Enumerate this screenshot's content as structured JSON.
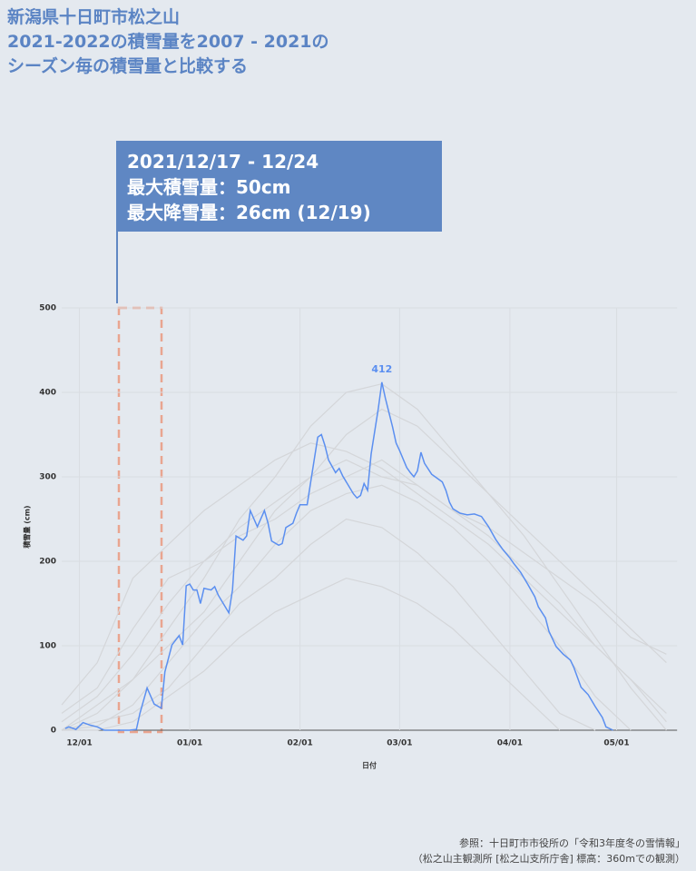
{
  "chart_data": {
    "type": "line",
    "title": [
      "新潟県十日町市松之山",
      "2021-2022の積雪量を2007 - 2021の",
      "シーズン毎の積雪量と比較する"
    ],
    "annotation": [
      "2021/12/17 - 12/24",
      "最大積雪量：50cm",
      "最大降雪量：26cm (12/19)"
    ],
    "source": [
      "参照：十日町市市役所の「令和3年度冬の雪情報」",
      "（松之山主観測所 [松之山支所庁舎] 標高：360mでの観測）"
    ],
    "y_label": "積雪量 (cm)",
    "x_label": "日付",
    "xlim": [
      "11/26",
      "05/18"
    ],
    "xticks": [
      "12/01",
      "01/01",
      "02/01",
      "03/01",
      "04/01",
      "05/01"
    ],
    "ylim": [
      0,
      500
    ],
    "yticks": [
      0,
      100,
      200,
      300,
      400,
      500
    ],
    "grid": true,
    "x": [
      "11/26",
      "12/06",
      "12/16",
      "12/26",
      "01/05",
      "01/15",
      "01/25",
      "02/04",
      "02/14",
      "02/24",
      "03/06",
      "03/16",
      "03/26",
      "04/05",
      "04/15",
      "04/25",
      "05/05",
      "05/15"
    ],
    "series": [
      {
        "color": "#d4d6d9",
        "values": [
          0,
          20,
          60,
          120,
          180,
          250,
          300,
          360,
          400,
          410,
          380,
          330,
          280,
          230,
          170,
          110,
          50,
          0
        ]
      },
      {
        "color": "#d4d6d9",
        "values": [
          10,
          40,
          90,
          150,
          200,
          240,
          270,
          300,
          320,
          300,
          290,
          260,
          230,
          190,
          150,
          100,
          60,
          20
        ]
      },
      {
        "color": "#d4d6d9",
        "values": [
          0,
          5,
          30,
          80,
          130,
          170,
          220,
          260,
          280,
          290,
          270,
          240,
          200,
          150,
          100,
          40,
          0,
          null
        ]
      },
      {
        "color": "#d4d6d9",
        "values": [
          30,
          80,
          180,
          220,
          260,
          290,
          320,
          340,
          330,
          310,
          280,
          250,
          220,
          180,
          140,
          100,
          60,
          10
        ]
      },
      {
        "color": "#d4d6d9",
        "values": [
          0,
          10,
          20,
          50,
          100,
          150,
          180,
          220,
          250,
          240,
          210,
          170,
          120,
          70,
          20,
          0,
          null,
          null
        ]
      },
      {
        "color": "#d4d6d9",
        "values": [
          0,
          30,
          60,
          100,
          140,
          200,
          260,
          300,
          350,
          380,
          360,
          320,
          280,
          240,
          200,
          160,
          120,
          80
        ]
      },
      {
        "color": "#d4d6d9",
        "values": [
          0,
          0,
          10,
          40,
          70,
          110,
          140,
          160,
          180,
          170,
          150,
          120,
          80,
          40,
          0,
          null,
          null,
          null
        ]
      },
      {
        "color": "#d4d6d9",
        "values": [
          20,
          50,
          120,
          180,
          200,
          230,
          250,
          280,
          300,
          320,
          290,
          260,
          240,
          210,
          180,
          150,
          110,
          90
        ]
      },
      {
        "color": "#5b8ff0",
        "highlight": true,
        "x": [
          "11/27",
          "11/28",
          "11/30",
          "12/02",
          "12/04",
          "12/06",
          "12/08",
          "12/15",
          "12/17",
          "12/18",
          "12/20",
          "12/22",
          "12/24",
          "12/25",
          "12/27",
          "12/29",
          "12/30",
          "12/31",
          "01/01",
          "01/02",
          "01/03",
          "01/04",
          "01/05",
          "01/07",
          "01/08",
          "01/09",
          "01/11",
          "01/12",
          "01/13",
          "01/14",
          "01/16",
          "01/17",
          "01/18",
          "01/20",
          "01/22",
          "01/23",
          "01/24",
          "01/26",
          "01/27",
          "01/28",
          "01/30",
          "01/31",
          "02/01",
          "02/03",
          "02/04",
          "02/06",
          "02/07",
          "02/08",
          "02/09",
          "02/11",
          "02/12",
          "02/13",
          "02/14",
          "02/16",
          "02/17",
          "02/18",
          "02/19",
          "02/20",
          "02/21",
          "02/23",
          "02/24",
          "02/25",
          "02/27",
          "02/28",
          "03/01",
          "03/03",
          "03/04",
          "03/05",
          "03/06",
          "03/07",
          "03/08",
          "03/10",
          "03/11",
          "03/13",
          "03/14",
          "03/15",
          "03/16",
          "03/18",
          "03/20",
          "03/22",
          "03/24",
          "03/26",
          "03/28",
          "03/30",
          "04/01",
          "04/02",
          "04/04",
          "04/06",
          "04/08",
          "04/09",
          "04/11",
          "04/12",
          "04/14",
          "04/16",
          "04/18",
          "04/19",
          "04/21",
          "04/23",
          "04/25",
          "04/27",
          "04/28",
          "04/30"
        ],
        "values": [
          2,
          4,
          1,
          9,
          6,
          4,
          0,
          0,
          1,
          20,
          50,
          31,
          26,
          69,
          101,
          112,
          101,
          171,
          173,
          166,
          166,
          150,
          168,
          166,
          170,
          160,
          146,
          139,
          166,
          230,
          225,
          230,
          260,
          241,
          260,
          245,
          224,
          219,
          221,
          240,
          245,
          257,
          267,
          267,
          294,
          347,
          350,
          337,
          320,
          305,
          310,
          301,
          294,
          280,
          275,
          278,
          292,
          284,
          327,
          381,
          412,
          393,
          359,
          340,
          331,
          311,
          305,
          300,
          307,
          329,
          316,
          303,
          300,
          294,
          284,
          270,
          262,
          257,
          255,
          256,
          253,
          241,
          226,
          214,
          204,
          198,
          187,
          173,
          158,
          146,
          133,
          117,
          99,
          90,
          83,
          74,
          51,
          42,
          28,
          15,
          4,
          0
        ]
      }
    ]
  }
}
